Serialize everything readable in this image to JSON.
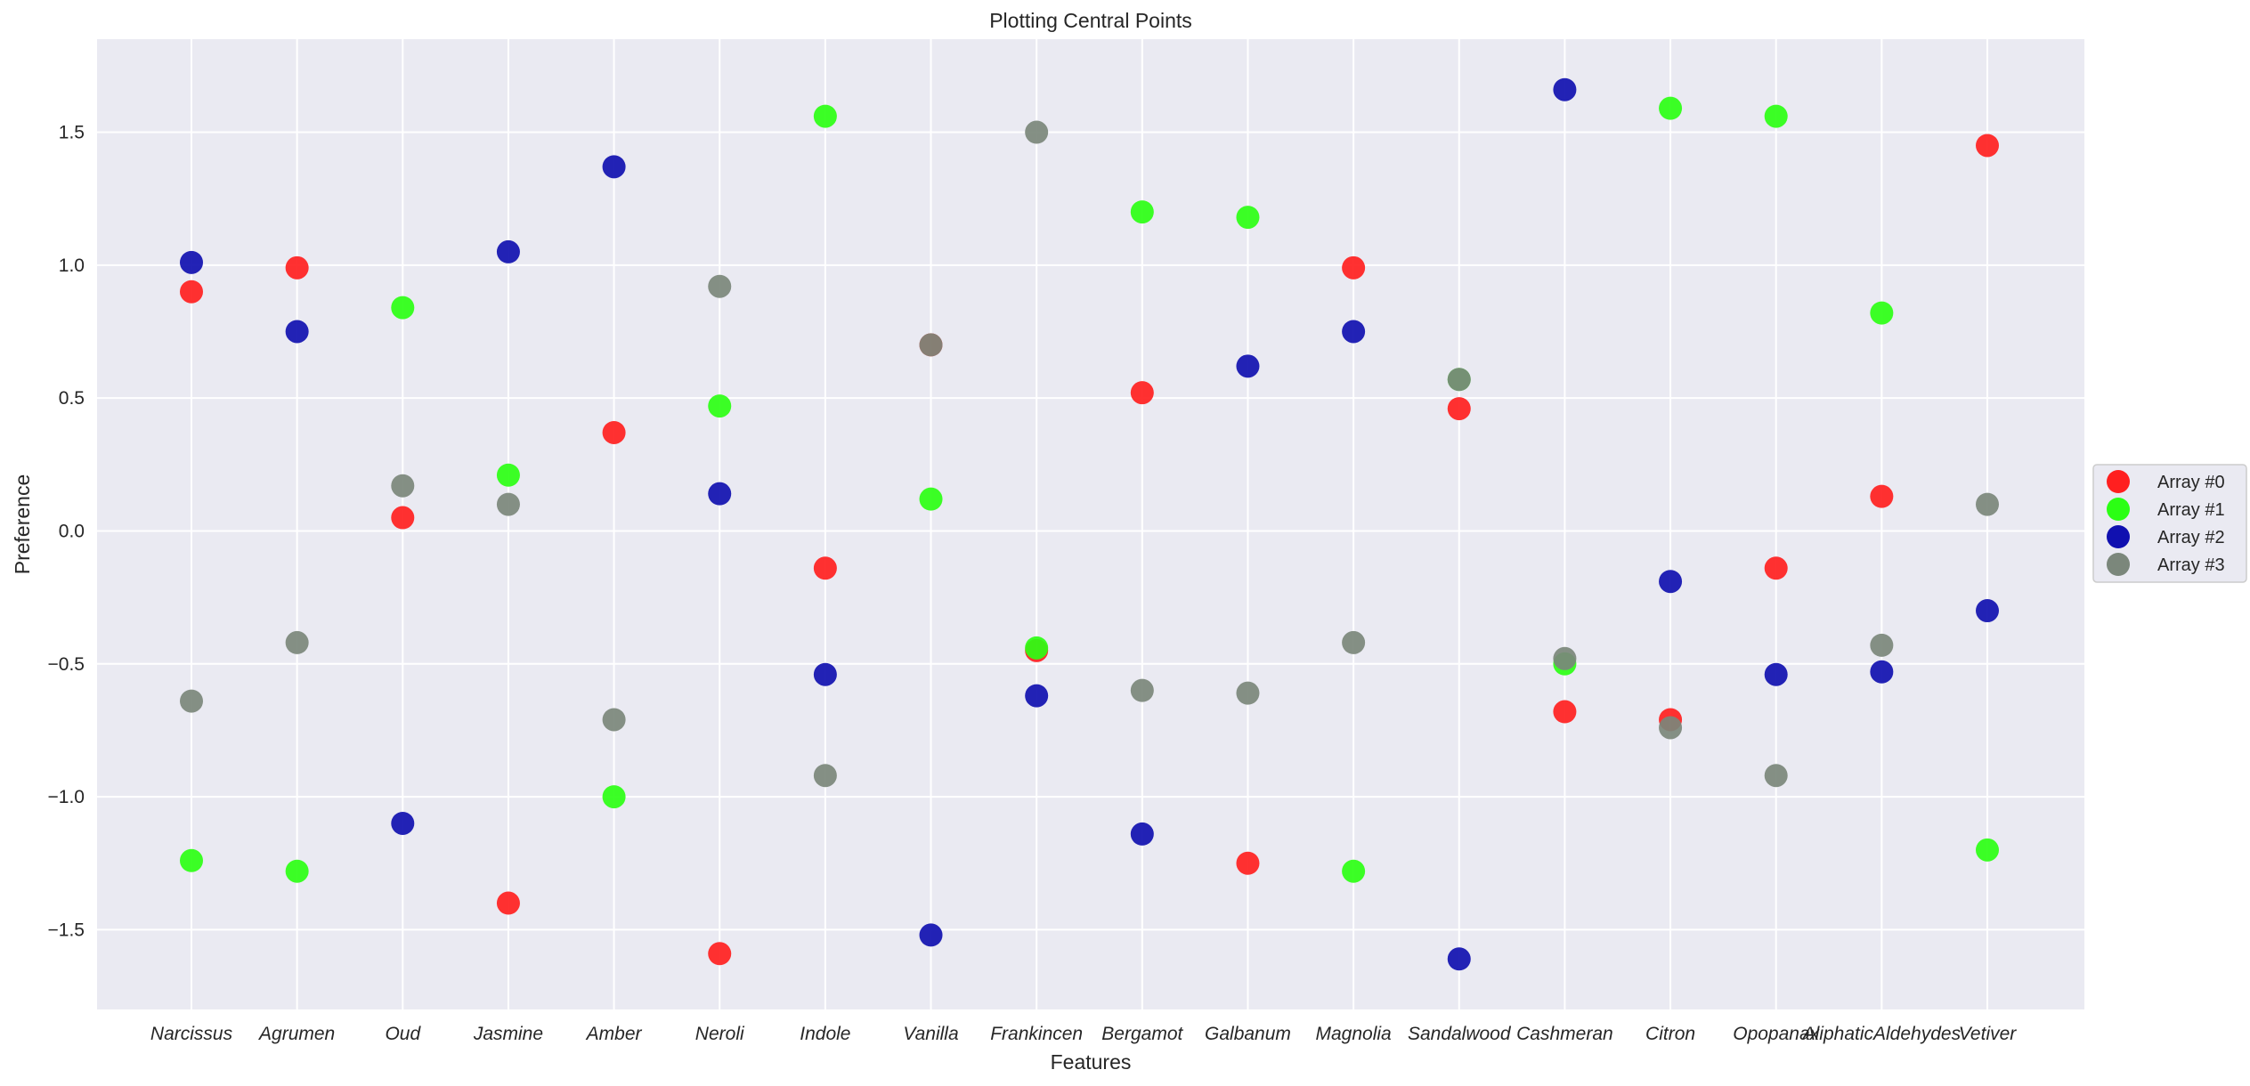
{
  "chart_data": {
    "type": "scatter",
    "title": "Plotting Central Points",
    "xlabel": "Features",
    "ylabel": "Preference",
    "categories": [
      "Narcissus",
      "Agrumen",
      "Oud",
      "Jasmine",
      "Amber",
      "Neroli",
      "Indole",
      "Vanilla",
      "Frankincen",
      "Bergamot",
      "Galbanum",
      "Magnolia",
      "Sandalwood",
      "Cashmeran",
      "Citron",
      "Opopanax",
      "AliphaticAldehydes",
      "Vetiver"
    ],
    "ylim": [
      -1.8,
      1.85
    ],
    "yticks": [
      -1.5,
      -1.0,
      -0.5,
      0.0,
      0.5,
      1.0,
      1.5
    ],
    "ytick_labels": [
      "−1.5",
      "−1.0",
      "−0.5",
      "0.0",
      "0.5",
      "1.0",
      "1.5"
    ],
    "grid": true,
    "legend_position": "right",
    "background_color": "#eaeaf2",
    "series": [
      {
        "name": "Array #0",
        "color": "#ff1f1f",
        "values": [
          0.9,
          0.99,
          0.05,
          -1.4,
          0.37,
          -1.59,
          -0.14,
          0.7,
          -0.45,
          0.52,
          -1.25,
          0.99,
          0.46,
          -0.68,
          -0.71,
          -0.14,
          0.13,
          1.45
        ]
      },
      {
        "name": "Array #1",
        "color": "#2bff14",
        "values": [
          -1.24,
          -1.28,
          0.84,
          0.21,
          -1.0,
          0.47,
          1.56,
          0.12,
          -0.44,
          1.2,
          1.18,
          -1.28,
          0.57,
          -0.5,
          1.59,
          1.56,
          0.82,
          -1.2
        ]
      },
      {
        "name": "Array #2",
        "color": "#1010b0",
        "values": [
          1.01,
          0.75,
          -1.1,
          1.05,
          1.37,
          0.14,
          -0.54,
          -1.52,
          -0.62,
          -1.14,
          0.62,
          0.75,
          -1.61,
          1.66,
          -0.19,
          -0.54,
          -0.53,
          -0.3
        ]
      },
      {
        "name": "Array #3",
        "color": "#7b877b",
        "values": [
          -0.64,
          -0.42,
          0.17,
          0.1,
          -0.71,
          0.92,
          -0.92,
          0.7,
          1.5,
          -0.6,
          -0.61,
          -0.42,
          0.57,
          -0.48,
          -0.74,
          -0.92,
          -0.43,
          0.1
        ]
      }
    ]
  }
}
